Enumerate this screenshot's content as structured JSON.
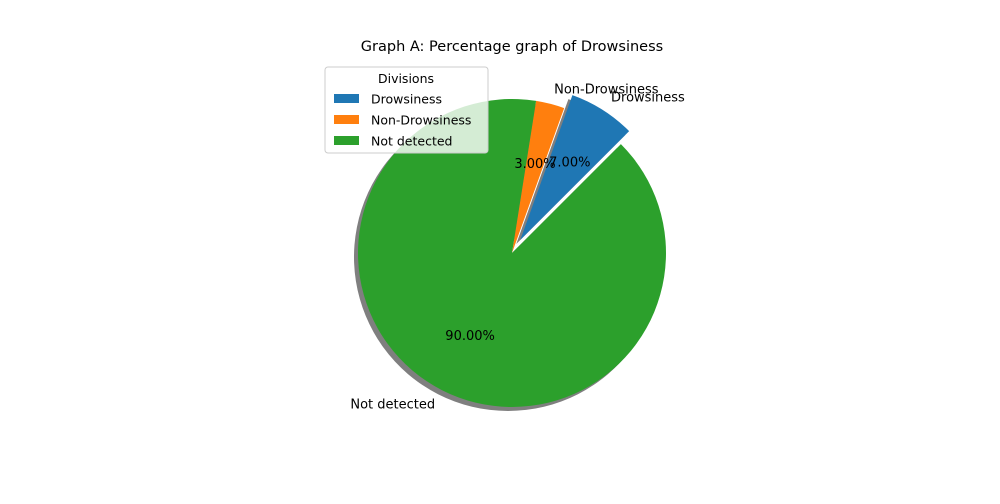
{
  "chart_data": {
    "type": "pie",
    "title": "Graph A: Percentage graph of Drowsiness",
    "slices": [
      {
        "label": "Drowsiness",
        "value": 7,
        "pct_label": "7.00%",
        "color": "#1f77b4",
        "exploded": true
      },
      {
        "label": "Non-Drowsiness",
        "value": 3,
        "pct_label": "3.00%",
        "color": "#ff7f0e",
        "exploded": false
      },
      {
        "label": "Not detected",
        "value": 90,
        "pct_label": "90.00%",
        "color": "#2ca02c",
        "exploded": false
      }
    ],
    "start_angle_deg": 45,
    "shadow": true,
    "legend": {
      "title": "Divisions",
      "placement": "upper-left",
      "entries": [
        "Drowsiness",
        "Non-Drowsiness",
        "Not detected"
      ]
    }
  }
}
